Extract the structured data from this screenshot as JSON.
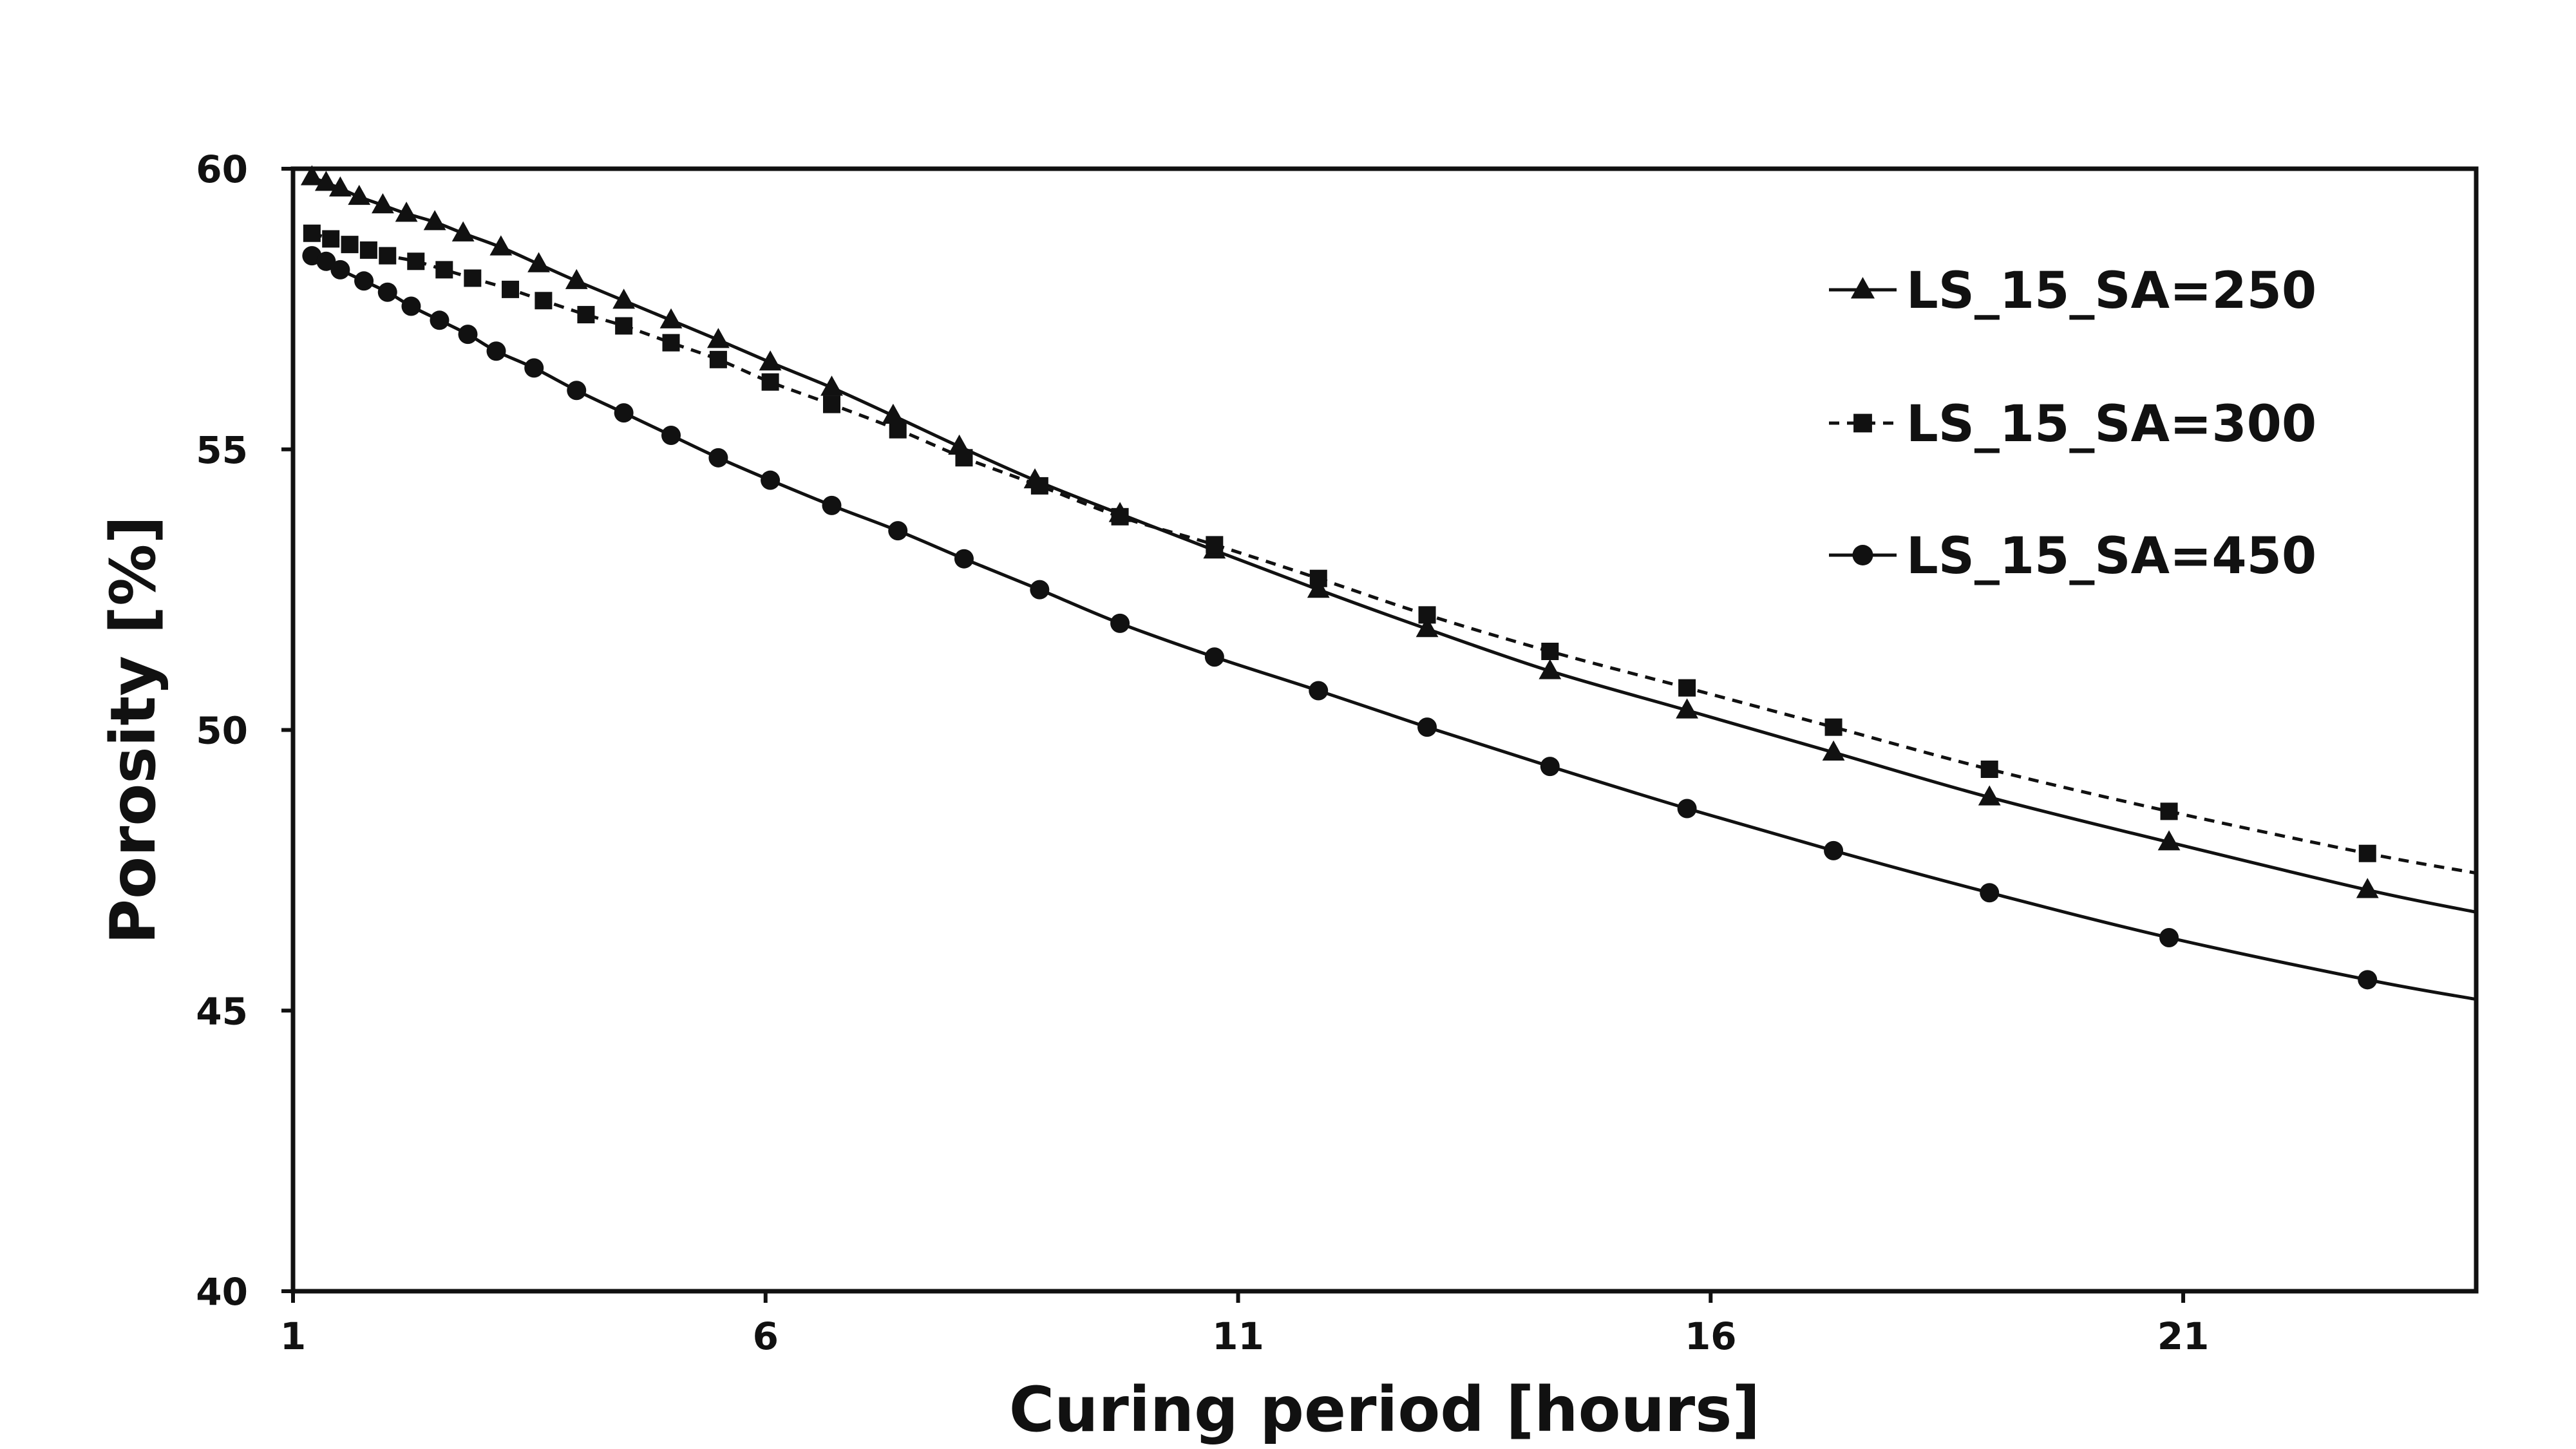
{
  "chart_data": {
    "type": "line",
    "title": "",
    "xlabel": "Curing period [hours]",
    "ylabel": "Porosity [%]",
    "xlim": [
      1,
      24.1
    ],
    "ylim": [
      40,
      60
    ],
    "x_ticks": [
      1,
      6,
      11,
      16,
      21
    ],
    "y_ticks": [
      40,
      45,
      50,
      55,
      60
    ],
    "grid": false,
    "legend": "upper-right",
    "series": [
      {
        "name": "LS_15_SA=250",
        "marker": "triangle",
        "line_style": "solid",
        "color": "#111111",
        "x": [
          1.2,
          1.35,
          1.5,
          1.7,
          1.95,
          2.2,
          2.5,
          2.8,
          3.2,
          3.6,
          4.0,
          4.5,
          5.0,
          5.5,
          6.05,
          6.7,
          7.35,
          8.05,
          8.85,
          9.75,
          10.75,
          11.85,
          13.0,
          14.3,
          15.75,
          17.3,
          18.95,
          20.85,
          22.95
        ],
        "y": [
          59.85,
          59.75,
          59.65,
          59.5,
          59.35,
          59.2,
          59.05,
          58.85,
          58.6,
          58.3,
          58.0,
          57.65,
          57.3,
          56.95,
          56.55,
          56.1,
          55.6,
          55.05,
          54.45,
          53.85,
          53.2,
          52.5,
          51.8,
          51.05,
          50.35,
          49.6,
          48.8,
          48.0,
          47.15
        ]
      },
      {
        "name": "LS_15_SA=300",
        "marker": "square",
        "line_style": "dashed",
        "color": "#111111",
        "x": [
          1.2,
          1.4,
          1.6,
          1.8,
          2.0,
          2.3,
          2.6,
          2.9,
          3.3,
          3.65,
          4.1,
          4.5,
          5.0,
          5.5,
          6.05,
          6.7,
          7.4,
          8.1,
          8.9,
          9.75,
          10.75,
          11.85,
          13.0,
          14.3,
          15.75,
          17.3,
          18.95,
          20.85,
          22.95
        ],
        "y": [
          58.85,
          58.75,
          58.65,
          58.55,
          58.45,
          58.35,
          58.2,
          58.05,
          57.85,
          57.65,
          57.4,
          57.2,
          56.9,
          56.6,
          56.2,
          55.8,
          55.35,
          54.85,
          54.35,
          53.8,
          53.3,
          52.7,
          52.05,
          51.4,
          50.75,
          50.05,
          49.3,
          48.55,
          47.8
        ]
      },
      {
        "name": "LS_15_SA=450",
        "marker": "circle",
        "line_style": "solid",
        "color": "#111111",
        "x": [
          1.2,
          1.35,
          1.5,
          1.75,
          2.0,
          2.25,
          2.55,
          2.85,
          3.15,
          3.55,
          4.0,
          4.5,
          5.0,
          5.5,
          6.05,
          6.7,
          7.4,
          8.1,
          8.9,
          9.75,
          10.75,
          11.85,
          13.0,
          14.3,
          15.75,
          17.3,
          18.95,
          20.85,
          22.95
        ],
        "y": [
          58.45,
          58.35,
          58.2,
          58.0,
          57.8,
          57.55,
          57.3,
          57.05,
          56.75,
          56.45,
          56.05,
          55.65,
          55.25,
          54.85,
          54.45,
          54.0,
          53.55,
          53.05,
          52.5,
          51.9,
          51.3,
          50.7,
          50.05,
          49.35,
          48.6,
          47.85,
          47.1,
          46.3,
          45.55
        ]
      }
    ]
  }
}
